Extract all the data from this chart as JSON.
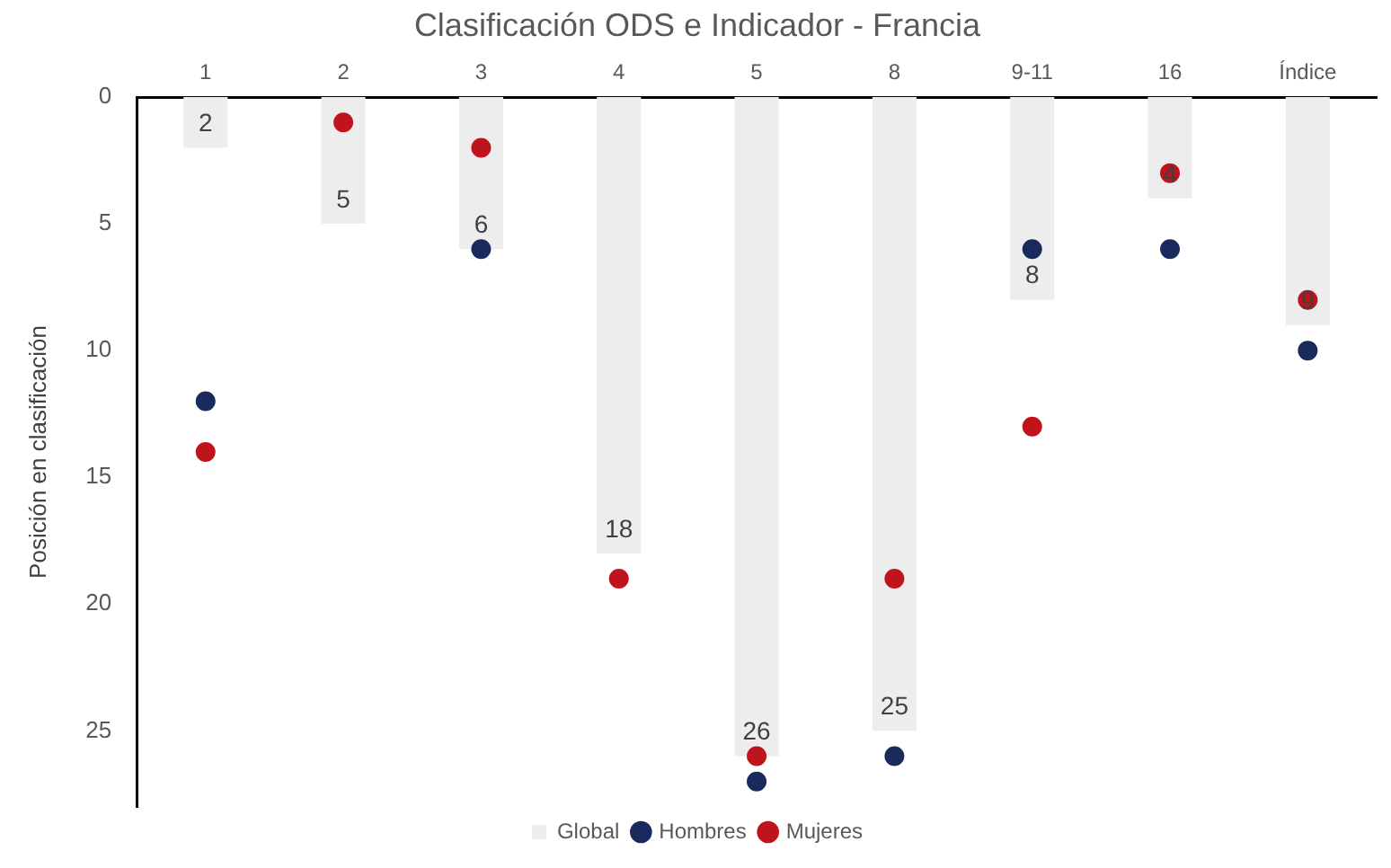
{
  "chart_data": {
    "type": "bar",
    "title": "Clasificación ODS e Indicador - Francia",
    "ylabel": "Posición en clasificación",
    "categories": [
      "1",
      "2",
      "3",
      "4",
      "5",
      "8",
      "9-11",
      "16",
      "Índice"
    ],
    "series": [
      {
        "name": "Global",
        "color": "#ededed",
        "values": [
          2,
          5,
          6,
          18,
          26,
          25,
          8,
          4,
          9
        ],
        "value_labels": [
          "2",
          "5",
          "6",
          "18",
          "26",
          "25",
          "8",
          "4",
          "9"
        ]
      },
      {
        "name": "Hombres",
        "type": "scatter",
        "color": "#1b2a5c",
        "values": [
          12,
          null,
          6,
          null,
          27,
          26,
          6,
          6,
          10
        ]
      },
      {
        "name": "Mujeres",
        "type": "scatter",
        "color": "#c0141c",
        "values": [
          14,
          1,
          2,
          19,
          26,
          19,
          13,
          3,
          8
        ]
      }
    ],
    "ylim": [
      28,
      0
    ],
    "yticks": [
      0,
      5,
      10,
      15,
      20,
      25
    ],
    "grid": false,
    "legend": "bottom",
    "marker": "circle"
  }
}
